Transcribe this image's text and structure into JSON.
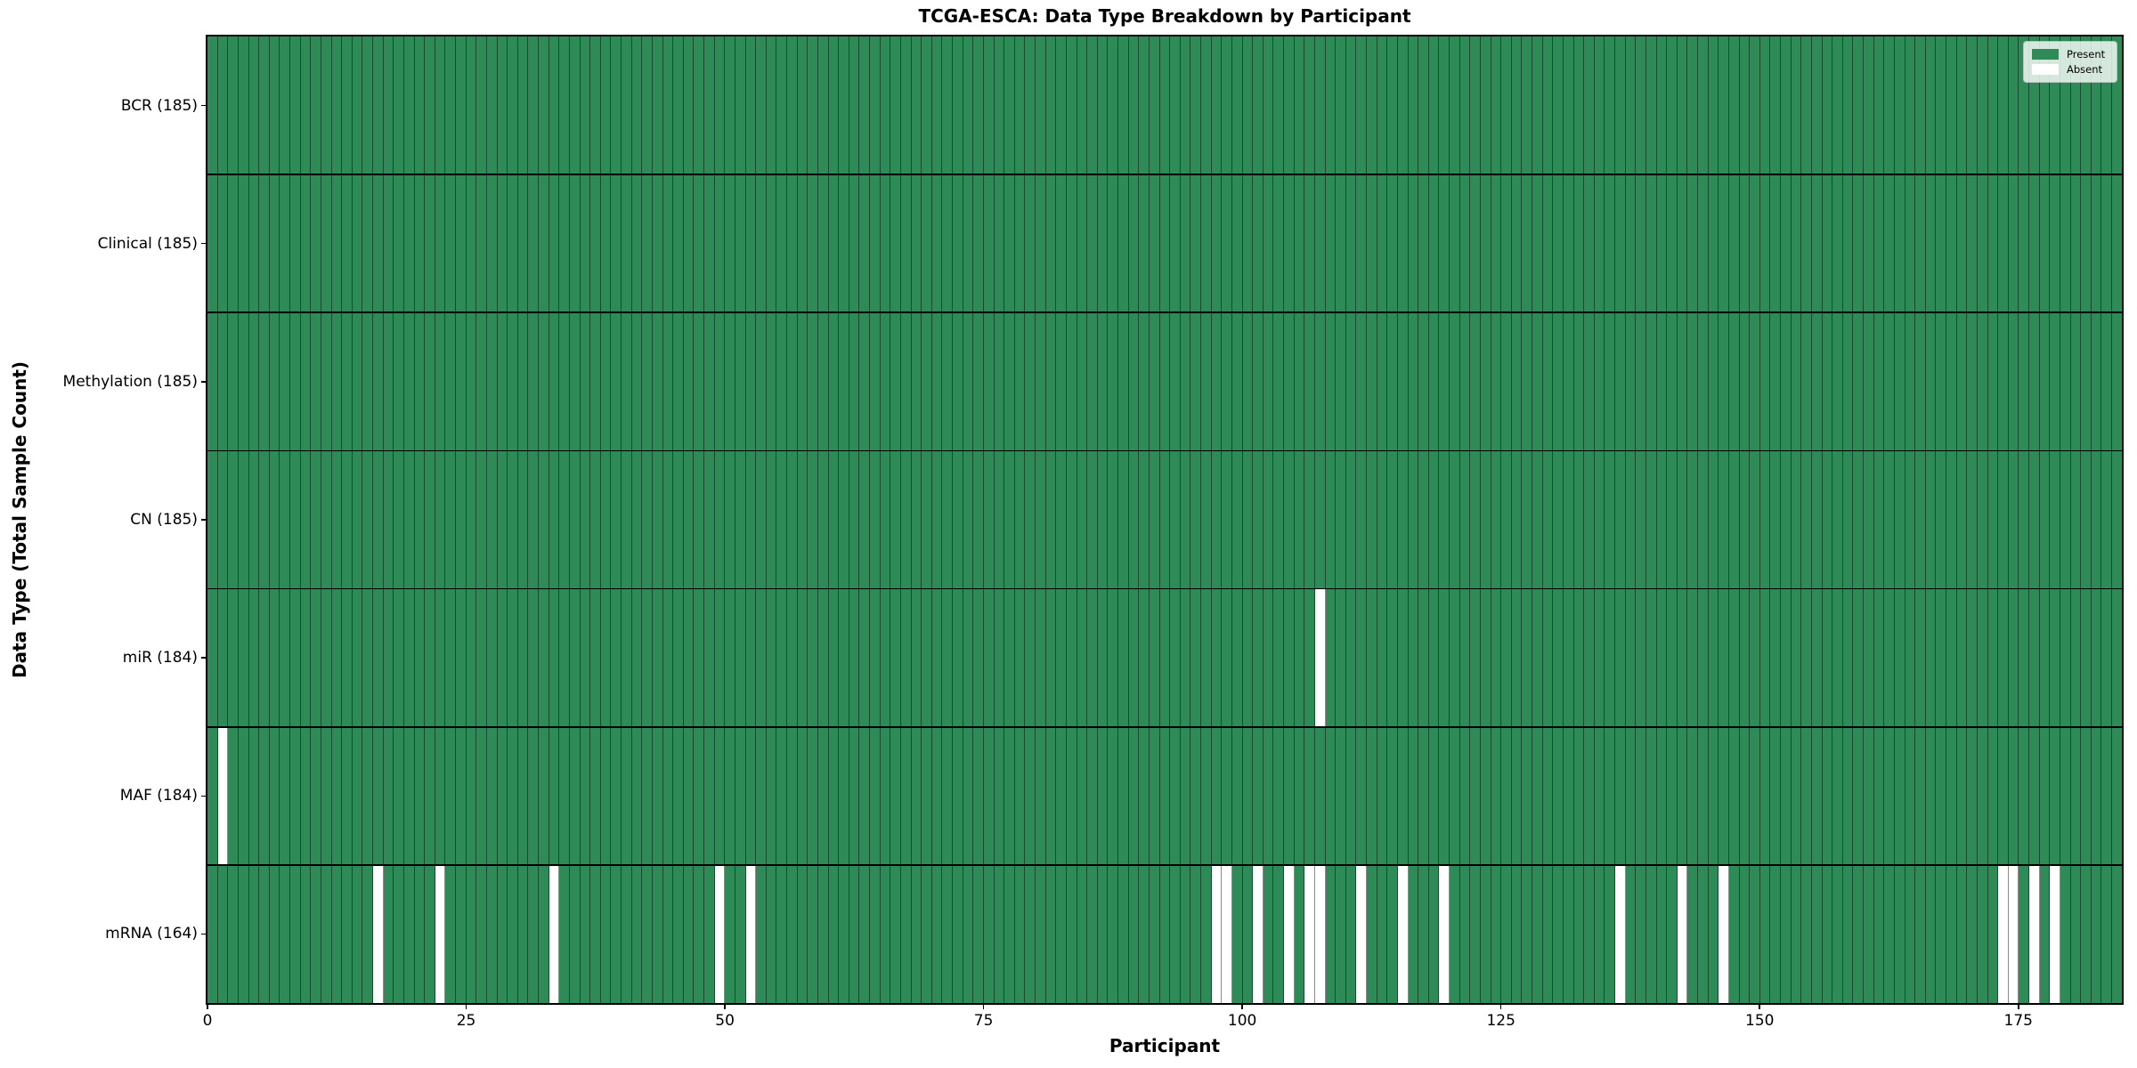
{
  "chart_data": {
    "type": "heatmap",
    "title": "TCGA-ESCA: Data Type Breakdown by Participant",
    "xlabel": "Participant",
    "ylabel": "Data Type (Total Sample Count)",
    "n_participants": 185,
    "x_ticks": [
      0,
      25,
      50,
      75,
      100,
      125,
      150,
      175
    ],
    "x_range": [
      0,
      185
    ],
    "grid": true,
    "legend_position": "upper right",
    "legend": [
      {
        "label": "Present",
        "color": "#2e8b57"
      },
      {
        "label": "Absent",
        "color": "#ffffff"
      }
    ],
    "colors": {
      "present": "#2e8b57",
      "absent": "#ffffff",
      "gridline": "rgba(0,0,0,0.45)"
    },
    "rows": [
      {
        "key": "BCR",
        "label": "BCR (185)",
        "total": 185,
        "absent": []
      },
      {
        "key": "Clinical",
        "label": "Clinical (185)",
        "total": 185,
        "absent": []
      },
      {
        "key": "Methylation",
        "label": "Methylation (185)",
        "total": 185,
        "absent": []
      },
      {
        "key": "CN",
        "label": "CN (185)",
        "total": 185,
        "absent": []
      },
      {
        "key": "miR",
        "label": "miR (184)",
        "total": 184,
        "absent": [
          107
        ]
      },
      {
        "key": "MAF",
        "label": "MAF (184)",
        "total": 184,
        "absent": [
          1
        ]
      },
      {
        "key": "mRNA",
        "label": "mRNA (164)",
        "total": 164,
        "absent": [
          16,
          22,
          33,
          49,
          52,
          97,
          98,
          101,
          104,
          106,
          107,
          111,
          115,
          119,
          136,
          142,
          146,
          173,
          174,
          176,
          178
        ]
      }
    ]
  }
}
